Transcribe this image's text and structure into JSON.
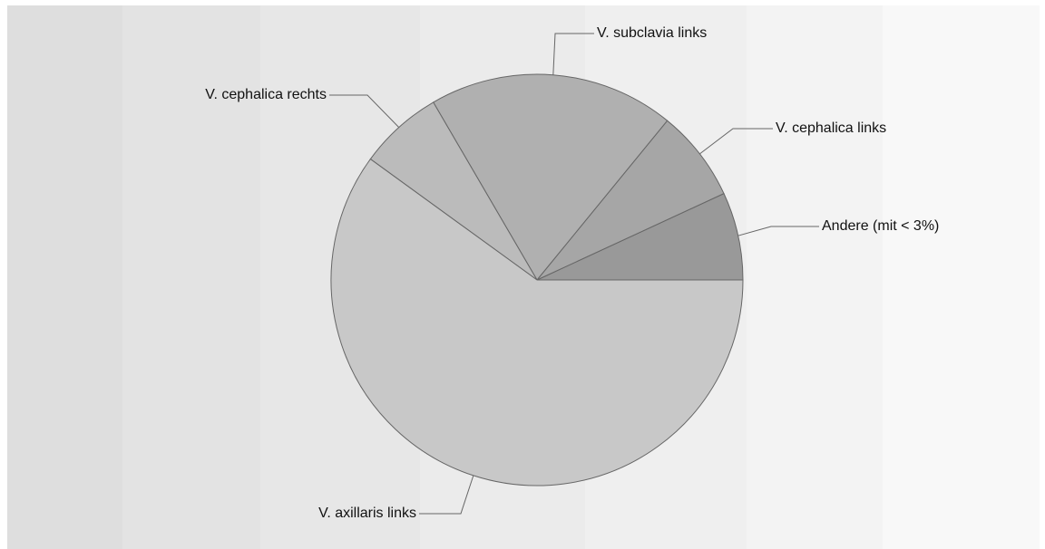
{
  "chart_data": {
    "type": "pie",
    "categories": [
      "Andere (mit < 3%)",
      "V. cephalica links",
      "V. subclavia links",
      "V. cephalica rechts",
      "V. axillaris links"
    ],
    "values": [
      6.9,
      7.2,
      19.3,
      6.6,
      60
    ],
    "colors": [
      "#999999",
      "#a6a6a6",
      "#b0b0b0",
      "#bbbbbb",
      "#c8c8c8"
    ]
  }
}
